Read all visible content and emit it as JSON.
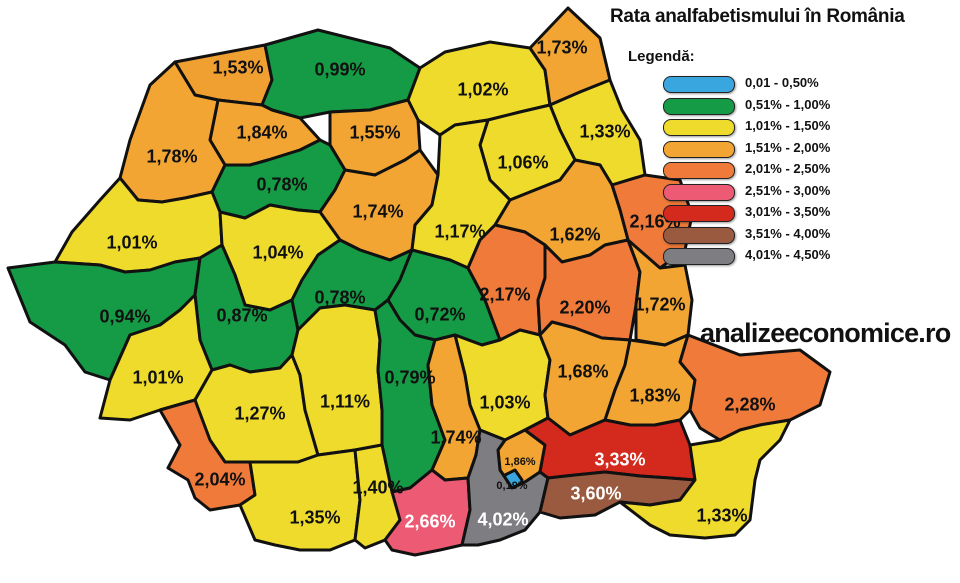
{
  "title": "Rata analfabetismului în România",
  "legend": {
    "title": "Legendă:",
    "items": [
      {
        "label": "0,01 - 0,50%",
        "color": "#3aa6df"
      },
      {
        "label": "0,51% - 1,00%",
        "color": "#159a45"
      },
      {
        "label": "1,01% - 1,50%",
        "color": "#eedb2c"
      },
      {
        "label": "1,51% - 2,00%",
        "color": "#f2a532"
      },
      {
        "label": "2,01% - 2,50%",
        "color": "#ef7a3a"
      },
      {
        "label": "2,51% - 3,00%",
        "color": "#ec5a73"
      },
      {
        "label": "3,01% - 3,50%",
        "color": "#d42a1e"
      },
      {
        "label": "3,51% - 4,00%",
        "color": "#9a5a40"
      },
      {
        "label": "4,01% - 4,50%",
        "color": "#7d7d82"
      }
    ]
  },
  "watermark": "analizeeconomice.ro",
  "counties": [
    {
      "value": "1,53%",
      "fill": "#f0a031"
    },
    {
      "value": "0,99%",
      "fill": "#159a45"
    },
    {
      "value": "1,02%",
      "fill": "#eedb2c"
    },
    {
      "value": "1,73%",
      "fill": "#f2a532"
    },
    {
      "value": "1,84%",
      "fill": "#f2a532"
    },
    {
      "value": "1,55%",
      "fill": "#f2a532"
    },
    {
      "value": "1,78%",
      "fill": "#f2a532"
    },
    {
      "value": "0,78%",
      "fill": "#159a45"
    },
    {
      "value": "1,33%",
      "fill": "#eedb2c"
    },
    {
      "value": "1,06%",
      "fill": "#eedb2c"
    },
    {
      "value": "1,74%",
      "fill": "#f2a532"
    },
    {
      "value": "2,16%",
      "fill": "#ef7a3a"
    },
    {
      "value": "1,01%",
      "fill": "#eedb2c"
    },
    {
      "value": "1,04%",
      "fill": "#eedb2c"
    },
    {
      "value": "1,17%",
      "fill": "#eedb2c"
    },
    {
      "value": "1,62%",
      "fill": "#f2a532"
    },
    {
      "value": "0,94%",
      "fill": "#159a45"
    },
    {
      "value": "0,87%",
      "fill": "#159a45"
    },
    {
      "value": "0,78%",
      "fill": "#159a45"
    },
    {
      "value": "0,72%",
      "fill": "#159a45"
    },
    {
      "value": "2,17%",
      "fill": "#ef7a3a"
    },
    {
      "value": "2,20%",
      "fill": "#ef7a3a"
    },
    {
      "value": "1,72%",
      "fill": "#f2a532"
    },
    {
      "value": "1,01%",
      "fill": "#eedb2c"
    },
    {
      "value": "1,27%",
      "fill": "#eedb2c"
    },
    {
      "value": "1,11%",
      "fill": "#eedb2c"
    },
    {
      "value": "0,79%",
      "fill": "#159a45"
    },
    {
      "value": "1,03%",
      "fill": "#eedb2c"
    },
    {
      "value": "1,68%",
      "fill": "#f2a532"
    },
    {
      "value": "1,83%",
      "fill": "#f2a532"
    },
    {
      "value": "2,28%",
      "fill": "#ef7a3a"
    },
    {
      "value": "2,04%",
      "fill": "#ef7a3a"
    },
    {
      "value": "1,74%",
      "fill": "#f2a532"
    },
    {
      "value": "1,86%",
      "fill": "#f2a532"
    },
    {
      "value": "0,19%",
      "fill": "#3aa6df"
    },
    {
      "value": "3,33%",
      "fill": "#d42a1e"
    },
    {
      "value": "1,35%",
      "fill": "#eedb2c"
    },
    {
      "value": "1,40%",
      "fill": "#eedb2c"
    },
    {
      "value": "2,66%",
      "fill": "#ec5a73"
    },
    {
      "value": "4,02%",
      "fill": "#7d7d82"
    },
    {
      "value": "3,60%",
      "fill": "#9a5a40"
    },
    {
      "value": "1,33%",
      "fill": "#eedb2c"
    }
  ]
}
